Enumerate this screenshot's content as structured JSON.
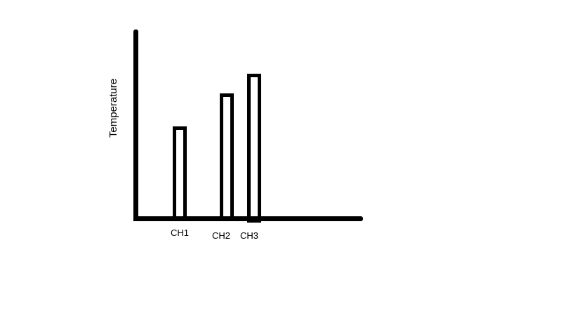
{
  "colors": {
    "ink": "#000000",
    "background": "#ffffff"
  },
  "chart_data": {
    "type": "bar",
    "title": "",
    "xlabel": "",
    "ylabel": "Temperature",
    "categories": [
      "CH1",
      "CH2",
      "CH3"
    ],
    "values": [
      128,
      175,
      203
    ],
    "ylim": [
      0,
      265
    ],
    "grid": false,
    "legend": "none",
    "bar_style": "hollow-outline",
    "axis_tick_labels_y": []
  }
}
